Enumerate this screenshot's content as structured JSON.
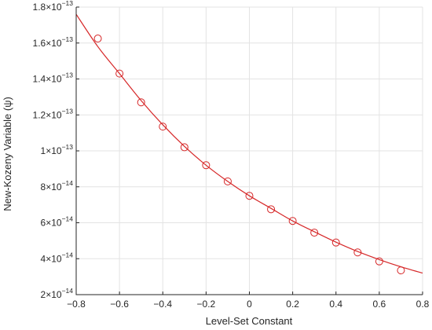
{
  "chart_data": {
    "type": "scatter",
    "xlabel": "Level-Set Constant",
    "ylabel": "New-Kozeny Variable (ψ)",
    "xlim": [
      -0.8,
      0.8
    ],
    "ylim": [
      2e-14,
      1.8e-13
    ],
    "grid": true,
    "x_ticks": [
      -0.8,
      -0.6,
      -0.4,
      -0.2,
      0,
      0.2,
      0.4,
      0.6,
      0.8
    ],
    "x_tick_labels": [
      "−0.8",
      "−0.6",
      "−0.4",
      "−0.2",
      "0",
      "0.2",
      "0.4",
      "0.6",
      "0.8"
    ],
    "y_ticks": [
      {
        "value": 2e-14,
        "mantissa": "2",
        "exponent": "−14"
      },
      {
        "value": 4e-14,
        "mantissa": "4",
        "exponent": "−14"
      },
      {
        "value": 6e-14,
        "mantissa": "6",
        "exponent": "−14"
      },
      {
        "value": 8e-14,
        "mantissa": "8",
        "exponent": "−14"
      },
      {
        "value": 1e-13,
        "mantissa": "1",
        "exponent": "−13"
      },
      {
        "value": 1.2e-13,
        "mantissa": "1.2",
        "exponent": "−13"
      },
      {
        "value": 1.4e-13,
        "mantissa": "1.4",
        "exponent": "−13"
      },
      {
        "value": 1.6e-13,
        "mantissa": "1.6",
        "exponent": "−13"
      },
      {
        "value": 1.8e-13,
        "mantissa": "1.8",
        "exponent": "−13"
      }
    ],
    "tick_base": "×10",
    "series": [
      {
        "kind": "markers",
        "marker": "circle",
        "color": "#d62728",
        "x": [
          -0.7,
          -0.6,
          -0.5,
          -0.4,
          -0.3,
          -0.2,
          -0.1,
          0,
          0.1,
          0.2,
          0.3,
          0.4,
          0.5,
          0.6,
          0.7
        ],
        "y": [
          1.625e-13,
          1.43e-13,
          1.27e-13,
          1.135e-13,
          1.02e-13,
          9.2e-14,
          8.3e-14,
          7.5e-14,
          6.75e-14,
          6.1e-14,
          5.45e-14,
          4.9e-14,
          4.35e-14,
          3.85e-14,
          3.35e-14
        ]
      },
      {
        "kind": "line",
        "color": "#d62728",
        "x": [
          -0.8,
          -0.7,
          -0.6,
          -0.5,
          -0.4,
          -0.3,
          -0.2,
          -0.1,
          0,
          0.1,
          0.2,
          0.3,
          0.4,
          0.5,
          0.6,
          0.7,
          0.8
        ],
        "y": [
          1.76e-13,
          1.58e-13,
          1.43e-13,
          1.28e-13,
          1.145e-13,
          1.025e-13,
          9.2e-14,
          8.3e-14,
          7.5e-14,
          6.8e-14,
          6.1e-14,
          5.5e-14,
          4.92e-14,
          4.4e-14,
          3.95e-14,
          3.55e-14,
          3.2e-14
        ]
      }
    ]
  }
}
